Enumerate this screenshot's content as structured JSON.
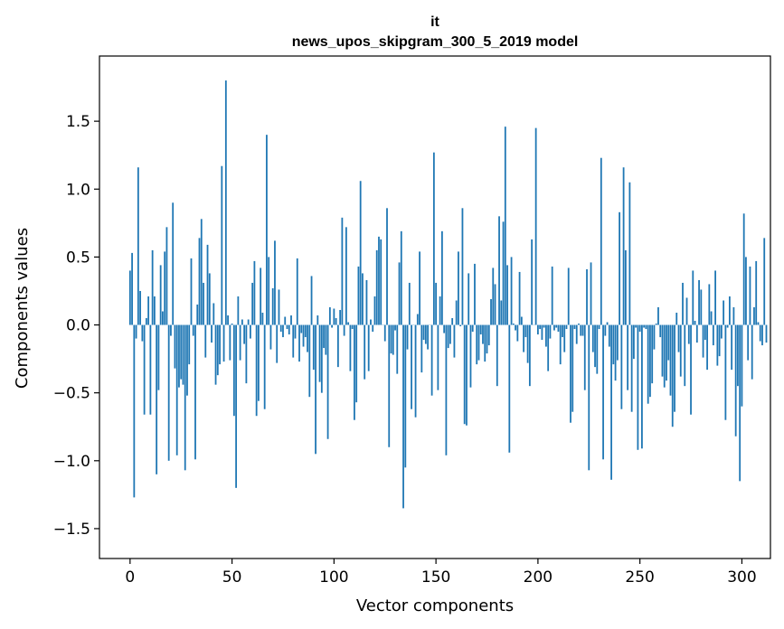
{
  "chart_data": {
    "type": "bar",
    "title": "it",
    "subtitle": "news_upos_skipgram_300_5_2019 model",
    "xlabel": "Vector components",
    "ylabel": "Components values",
    "xlim": [
      -15,
      314
    ],
    "ylim": [
      -1.72,
      1.98
    ],
    "xticks": [
      0,
      50,
      100,
      150,
      200,
      250,
      300
    ],
    "yticks": [
      -1.5,
      -1.0,
      -0.5,
      0.0,
      0.5,
      1.0,
      1.5
    ],
    "ytick_labels": [
      "−1.5",
      "−1.0",
      "−0.5",
      "0.0",
      "0.5",
      "1.0",
      "1.5"
    ],
    "bar_color": "#1f77b4",
    "grid": false,
    "values": [
      0.4,
      0.53,
      -1.27,
      -0.1,
      1.16,
      0.25,
      -0.12,
      -0.66,
      0.05,
      0.21,
      -0.66,
      0.55,
      0.21,
      -1.1,
      -0.48,
      0.44,
      0.1,
      0.54,
      0.72,
      -1.0,
      -0.08,
      0.9,
      -0.32,
      -0.96,
      -0.46,
      -0.4,
      -0.44,
      -1.07,
      -0.52,
      -0.29,
      0.49,
      -0.08,
      -0.99,
      0.15,
      0.64,
      0.78,
      0.31,
      -0.24,
      0.59,
      0.38,
      -0.13,
      0.16,
      -0.44,
      -0.37,
      -0.29,
      1.17,
      -0.27,
      1.8,
      0.07,
      -0.26,
      0.01,
      -0.67,
      -1.2,
      0.21,
      -0.26,
      0.04,
      -0.14,
      -0.43,
      0.04,
      -0.1,
      0.31,
      0.47,
      -0.67,
      -0.56,
      0.42,
      0.09,
      -0.62,
      1.4,
      0.5,
      -0.18,
      0.27,
      0.62,
      -0.28,
      0.26,
      -0.05,
      -0.09,
      0.06,
      -0.03,
      -0.07,
      0.07,
      -0.24,
      -0.1,
      0.49,
      -0.27,
      -0.06,
      -0.16,
      -0.09,
      -0.2,
      -0.53,
      0.36,
      -0.33,
      -0.95,
      0.07,
      -0.42,
      -0.5,
      -0.17,
      -0.22,
      -0.84,
      0.13,
      -0.02,
      0.12,
      0.05,
      -0.31,
      0.11,
      0.79,
      -0.08,
      0.72,
      0.02,
      -0.34,
      -0.03,
      -0.7,
      -0.57,
      0.43,
      1.06,
      0.38,
      -0.4,
      0.33,
      -0.34,
      0.04,
      -0.05,
      0.21,
      0.55,
      0.65,
      0.63,
      0.0,
      -0.12,
      0.86,
      -0.9,
      -0.21,
      -0.22,
      -0.04,
      -0.36,
      0.46,
      0.69,
      -1.35,
      -1.05,
      -0.18,
      0.31,
      -0.62,
      0.0,
      -0.68,
      0.08,
      0.54,
      -0.35,
      -0.11,
      -0.14,
      -0.18,
      0.0,
      -0.52,
      1.27,
      0.31,
      -0.48,
      0.21,
      0.69,
      -0.06,
      -0.96,
      -0.17,
      -0.14,
      0.05,
      -0.24,
      0.18,
      0.54,
      -0.01,
      0.86,
      -0.73,
      -0.74,
      0.38,
      -0.46,
      -0.05,
      0.45,
      -0.29,
      -0.26,
      -0.07,
      -0.14,
      -0.27,
      -0.21,
      -0.15,
      0.19,
      0.42,
      0.3,
      -0.45,
      0.8,
      0.18,
      0.76,
      1.46,
      0.44,
      -0.94,
      0.5,
      0.01,
      -0.04,
      -0.12,
      0.39,
      0.06,
      -0.2,
      -0.09,
      -0.28,
      -0.45,
      0.63,
      0.0,
      1.45,
      -0.07,
      -0.03,
      -0.11,
      -0.02,
      -0.16,
      -0.34,
      -0.1,
      0.43,
      -0.04,
      -0.02,
      -0.05,
      -0.29,
      -0.09,
      -0.2,
      -0.03,
      0.42,
      -0.72,
      -0.64,
      -0.03,
      -0.14,
      0.01,
      -0.08,
      -0.08,
      -0.48,
      0.41,
      -1.07,
      0.46,
      -0.2,
      -0.31,
      -0.36,
      -0.03,
      1.23,
      -0.99,
      -0.08,
      0.02,
      -0.16,
      -1.14,
      -0.29,
      -0.41,
      -0.26,
      0.83,
      -0.62,
      1.16,
      0.55,
      -0.48,
      1.05,
      -0.64,
      -0.25,
      -0.02,
      -0.92,
      -0.05,
      -0.91,
      -0.02,
      -0.03,
      -0.58,
      -0.53,
      -0.43,
      -0.18,
      0.01,
      0.13,
      -0.09,
      -0.38,
      -0.46,
      -0.41,
      -0.26,
      -0.52,
      -0.75,
      -0.64,
      0.09,
      -0.2,
      -0.38,
      0.31,
      -0.45,
      0.2,
      -0.14,
      -0.66,
      0.4,
      0.03,
      -0.13,
      0.33,
      0.26,
      -0.24,
      -0.11,
      -0.33,
      0.3,
      0.1,
      -0.15,
      0.4,
      -0.3,
      -0.23,
      -0.1,
      0.18,
      -0.7,
      -0.02,
      0.21,
      -0.33,
      0.13,
      -0.82,
      -0.45,
      -1.15,
      -0.6,
      0.82,
      0.5,
      -0.26,
      0.43,
      -0.4,
      0.13,
      0.47,
      0.02,
      -0.12,
      -0.15,
      0.64,
      -0.13
    ]
  }
}
